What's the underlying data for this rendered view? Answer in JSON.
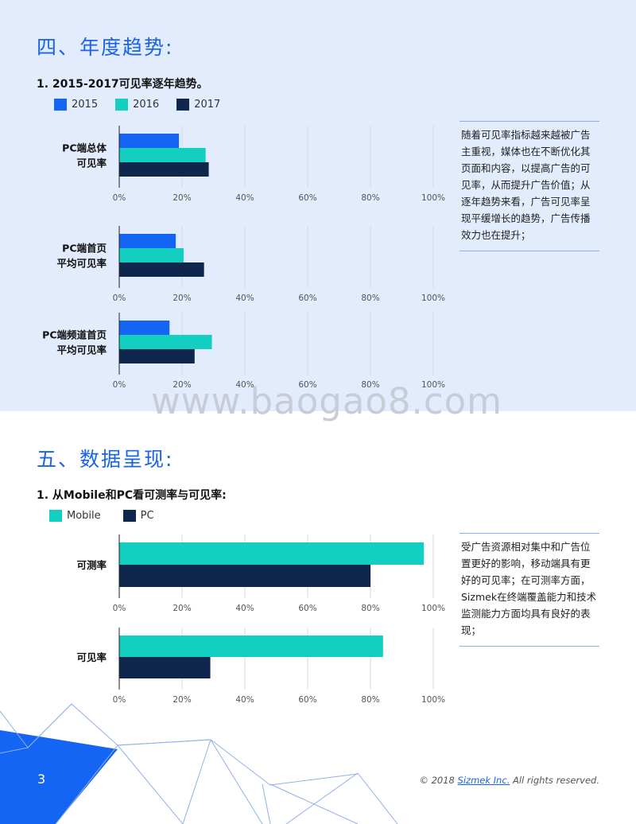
{
  "section4": {
    "title": "四、年度趋势:",
    "subtitle": "1.  2015-2017可见率逐年趋势。"
  },
  "section5": {
    "title": "五、数据呈现:",
    "subtitle": "1. 从Mobile和PC看可测率与可见率:"
  },
  "notes": {
    "note1": "随着可见率指标越来越被广告主重视，媒体也在不断优化其页面和内容，以提高广告的可见率，从而提升广告价值；从逐年趋势来看，广告可见率呈现平缓增长的趋势，广告传播效力也在提升；",
    "note2": "受广告资源相对集中和广告位置更好的影响，移动端具有更好的可见率；在可测率方面，Sizmek在终端覆盖能力和技术监测能力方面均具有良好的表现；"
  },
  "watermark": "www.baogao8.com",
  "footer": {
    "page": "3",
    "copyright_pre": "© 2018 ",
    "brand": "Sizmek Inc.",
    "copyright_post": " All rights reserved."
  },
  "chart_data": [
    {
      "type": "bar",
      "orientation": "horizontal",
      "title": "1.  2015-2017可见率逐年趋势。",
      "x_ticks": [
        "0%",
        "20%",
        "40%",
        "60%",
        "80%",
        "100%"
      ],
      "xlim": [
        0,
        100
      ],
      "legend": "top",
      "colors": [
        "#1565f5",
        "#13cfc1",
        "#10274d"
      ],
      "categories": [
        [
          "PC端总体",
          "可见率"
        ],
        [
          "PC端首页",
          "平均可见率"
        ],
        [
          "PC端频道首页",
          "平均可见率"
        ]
      ],
      "series": [
        {
          "name": "2015",
          "values": [
            19,
            18,
            16
          ]
        },
        {
          "name": "2016",
          "values": [
            27.5,
            20.5,
            29.5
          ]
        },
        {
          "name": "2017",
          "values": [
            28.5,
            27,
            24
          ]
        }
      ]
    },
    {
      "type": "bar",
      "orientation": "horizontal",
      "title": "1. 从Mobile和PC看可测率与可见率:",
      "x_ticks": [
        "0%",
        "20%",
        "40%",
        "60%",
        "80%",
        "100%"
      ],
      "xlim": [
        0,
        100
      ],
      "legend": "top",
      "colors": [
        "#13cfc1",
        "#10274d"
      ],
      "categories": [
        [
          "可测率"
        ],
        [
          "可见率"
        ]
      ],
      "series": [
        {
          "name": "Mobile",
          "values": [
            97,
            84
          ]
        },
        {
          "name": "PC",
          "values": [
            80,
            29
          ]
        }
      ]
    }
  ]
}
